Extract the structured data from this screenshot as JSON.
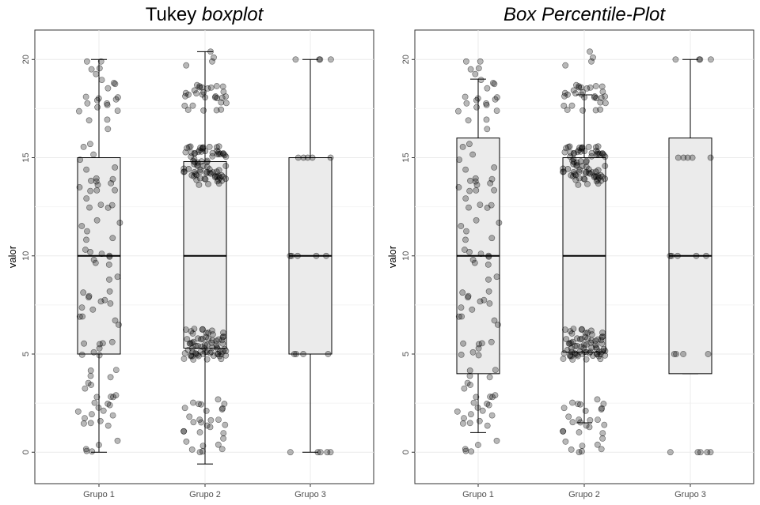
{
  "figure": {
    "panels": [
      {
        "title_plain": "Tukey ",
        "title_italic": "boxplot"
      },
      {
        "title_plain": "",
        "title_italic": "Box Percentile-Plot"
      }
    ]
  },
  "chart_data": [
    {
      "type": "box",
      "title": "Tukey boxplot",
      "xlabel": "",
      "ylabel": "valor",
      "categories": [
        "Grupo 1",
        "Grupo 2",
        "Grupo 3"
      ],
      "ylim": [
        -1.6,
        21.5
      ],
      "yticks": [
        0,
        5,
        10,
        15,
        20
      ],
      "grid": true,
      "box_fill": "#ebebeb",
      "point_color": "#000000",
      "boxes": [
        {
          "category": "Grupo 1",
          "whisker_low": 0,
          "q1": 5,
          "median": 10,
          "q3": 15,
          "whisker_high": 20
        },
        {
          "category": "Grupo 2",
          "whisker_low": -0.6,
          "q1": 5.3,
          "median": 10,
          "q3": 14.8,
          "whisker_high": 20.4
        },
        {
          "category": "Grupo 3",
          "whisker_low": 0,
          "q1": 5,
          "median": 10,
          "q3": 15,
          "whisker_high": 20
        }
      ]
    },
    {
      "type": "box",
      "title": "Box Percentile-Plot",
      "xlabel": "",
      "ylabel": "valor",
      "categories": [
        "Grupo 1",
        "Grupo 2",
        "Grupo 3"
      ],
      "ylim": [
        -1.6,
        21.5
      ],
      "yticks": [
        0,
        5,
        10,
        15,
        20
      ],
      "grid": true,
      "box_fill": "#ebebeb",
      "point_color": "#000000",
      "boxes": [
        {
          "category": "Grupo 1",
          "whisker_low": 1,
          "q1": 4,
          "median": 10,
          "q3": 16,
          "whisker_high": 19
        },
        {
          "category": "Grupo 2",
          "whisker_low": 1.5,
          "q1": 5.1,
          "median": 10,
          "q3": 15,
          "whisker_high": 18.2
        },
        {
          "category": "Grupo 3",
          "whisker_low": 4,
          "q1": 4,
          "median": 10,
          "q3": 16,
          "whisker_high": 20
        }
      ]
    }
  ]
}
